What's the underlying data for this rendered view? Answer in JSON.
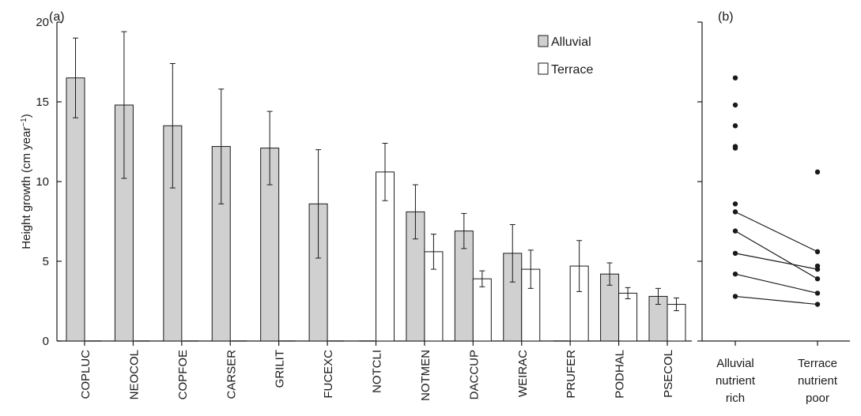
{
  "chart_data": [
    {
      "type": "bar",
      "panel_label": "(a)",
      "ylabel": "Height growth (cm year",
      "ylabel_sup": "−1",
      "ylabel_end": ")",
      "ylim": [
        0,
        20
      ],
      "yticks": [
        0,
        5,
        10,
        15,
        20
      ],
      "categories": [
        "COPLUC",
        "NEOCOL",
        "COPFOE",
        "CARSER",
        "GRILIT",
        "FUCEXC",
        "NOTCLI",
        "NOTMEN",
        "DACCUP",
        "WEIRAC",
        "PRUFER",
        "PODHAL",
        "PSECOL"
      ],
      "legend_position": "top-right",
      "series": [
        {
          "name": "Alluvial",
          "color": "#d0d0d0",
          "values": [
            16.5,
            14.8,
            13.5,
            12.2,
            12.1,
            8.6,
            null,
            8.1,
            6.9,
            5.5,
            null,
            4.2,
            2.8
          ],
          "error": [
            2.5,
            4.6,
            3.9,
            3.6,
            2.3,
            3.4,
            null,
            1.7,
            1.1,
            1.8,
            null,
            0.7,
            0.5
          ]
        },
        {
          "name": "Terrace",
          "color": "#ffffff",
          "values": [
            null,
            null,
            null,
            null,
            null,
            null,
            10.6,
            5.6,
            3.9,
            4.5,
            4.7,
            3.0,
            2.3
          ],
          "error": [
            null,
            null,
            null,
            null,
            null,
            null,
            1.8,
            1.1,
            0.5,
            1.2,
            1.6,
            0.35,
            0.4
          ]
        }
      ]
    },
    {
      "type": "scatter",
      "panel_label": "(b)",
      "ylim": [
        0,
        20
      ],
      "categories": [
        "Alluvial nutrient rich",
        "Terrace nutrient poor"
      ],
      "category_lines": [
        [
          "Alluvial",
          "nutrient",
          "rich"
        ],
        [
          "Terrace",
          "nutrient",
          "poor"
        ]
      ],
      "alluvial_points": [
        16.5,
        14.8,
        13.5,
        12.2,
        12.1,
        8.6,
        8.1,
        6.9,
        5.5,
        4.2,
        2.8
      ],
      "terrace_points": [
        10.6,
        5.6,
        4.7,
        4.5,
        3.9,
        3.0,
        2.3
      ],
      "pairs": [
        [
          8.1,
          5.6
        ],
        [
          6.9,
          3.9
        ],
        [
          5.5,
          4.5
        ],
        [
          4.2,
          3.0
        ],
        [
          2.8,
          2.3
        ]
      ]
    }
  ]
}
